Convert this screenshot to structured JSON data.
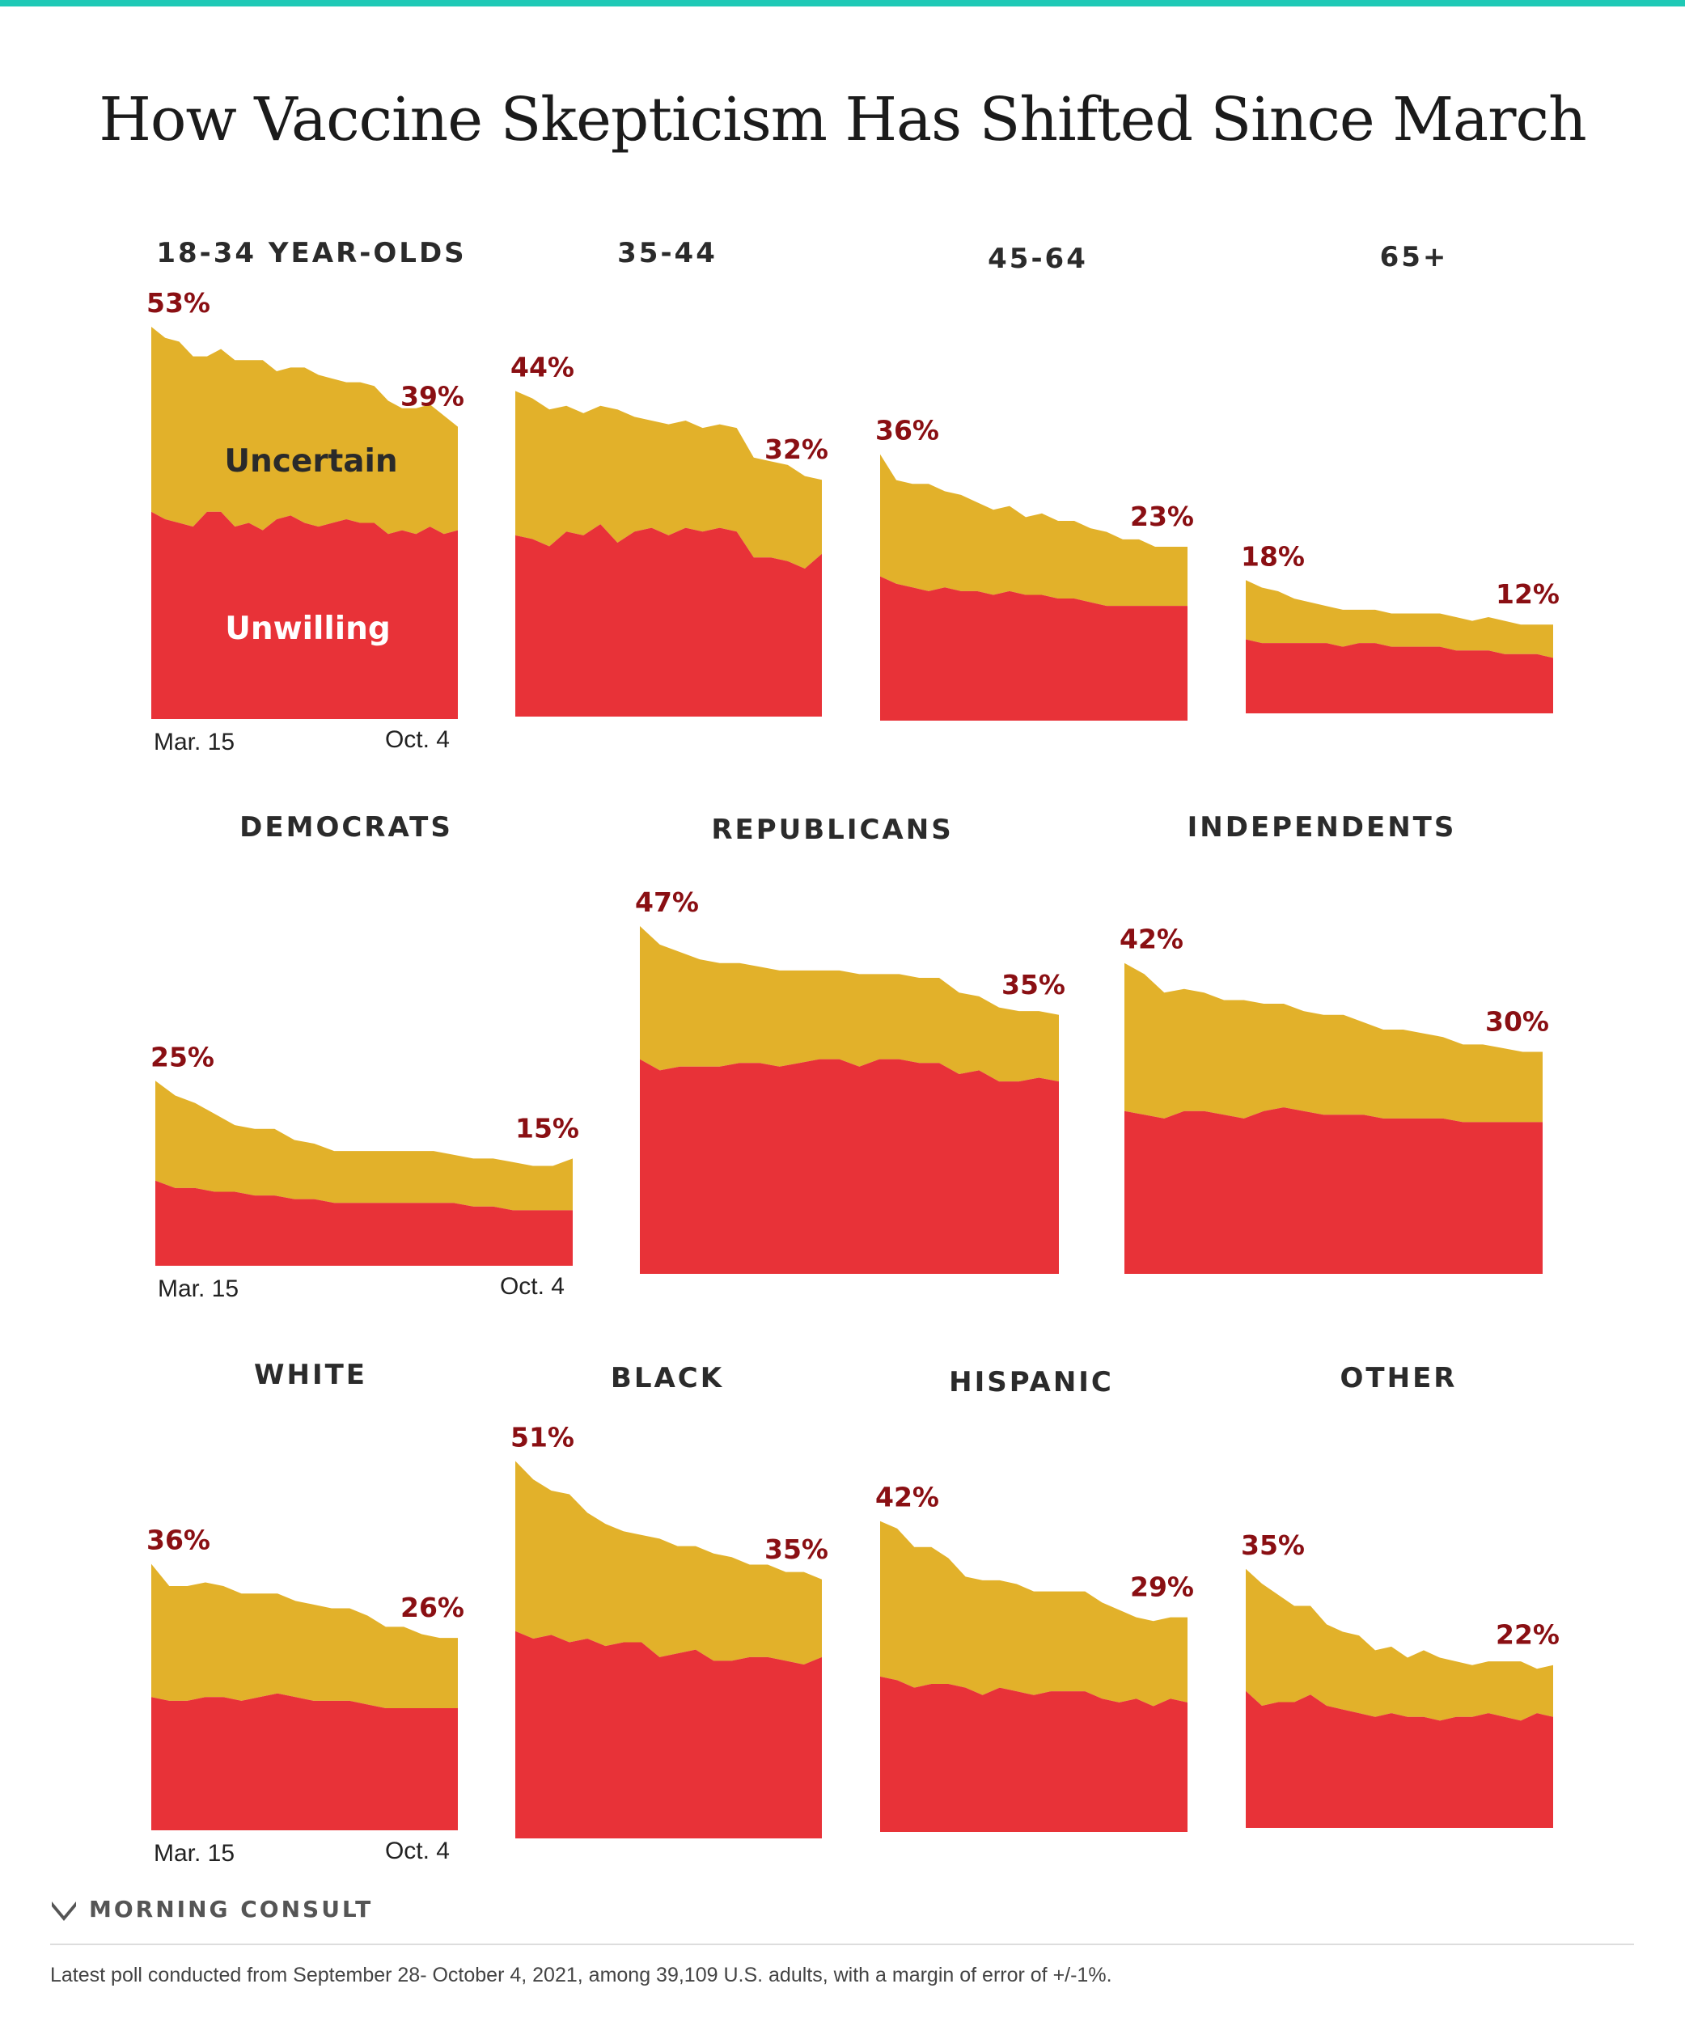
{
  "title": "How Vaccine Skepticism Has Shifted Since March",
  "colors": {
    "uncertain": "#e2b12a",
    "unwilling": "#e83238",
    "value_label": "#8a0f13",
    "accent_bar": "#1fc9b6",
    "title_text": "#1b1b1b"
  },
  "labels": {
    "uncertain": "Uncertain",
    "unwilling": "Unwilling"
  },
  "brand": "MORNING CONSULT",
  "footnote": "Latest poll conducted from September 28- October 4, 2021, among 39,109 U.S. adults, with a margin of error of +/-1%.",
  "chart_data": [
    {
      "type": "area",
      "title": "18-34 YEAR-OLDS",
      "x_start": "Mar. 15",
      "x_end": "Oct. 4",
      "start_label": "53%",
      "end_label": "39%",
      "ylim": [
        0,
        55
      ],
      "series": [
        {
          "name": "Unwilling",
          "values": [
            28,
            27,
            26.5,
            26,
            28,
            28,
            26,
            26.5,
            25.5,
            27,
            27.5,
            26.5,
            26,
            26.5,
            27,
            26.5,
            26.5,
            25,
            25.5,
            25,
            26,
            25,
            25.5
          ]
        },
        {
          "name": "Uncertain",
          "values": [
            25,
            24.5,
            24.5,
            23,
            21,
            22,
            22.5,
            22,
            23,
            20,
            20,
            21,
            20.5,
            19.5,
            18.5,
            19,
            18.5,
            18,
            16.5,
            17,
            16.5,
            16,
            14
          ]
        }
      ]
    },
    {
      "type": "area",
      "title": "35-44",
      "start_label": "44%",
      "end_label": "32%",
      "ylim": [
        0,
        55
      ],
      "series": [
        {
          "name": "Unwilling",
          "values": [
            24.5,
            24,
            23,
            25,
            24.5,
            26,
            23.5,
            25,
            25.5,
            24.5,
            25.5,
            25,
            25.5,
            25,
            21.5,
            21.5,
            21,
            20,
            22
          ]
        },
        {
          "name": "Uncertain",
          "values": [
            19.5,
            19,
            18.5,
            17,
            16.5,
            16,
            18,
            15.5,
            14.5,
            15,
            14.5,
            14,
            14,
            14,
            13.5,
            13,
            13,
            12.5,
            10
          ]
        }
      ]
    },
    {
      "type": "area",
      "title": "45-64",
      "start_label": "36%",
      "end_label": "23%",
      "ylim": [
        0,
        55
      ],
      "series": [
        {
          "name": "Unwilling",
          "values": [
            19.5,
            18.5,
            18,
            17.5,
            18,
            17.5,
            17.5,
            17,
            17.5,
            17,
            17,
            16.5,
            16.5,
            16,
            15.5,
            15.5,
            15.5,
            15.5,
            15.5,
            15.5
          ]
        },
        {
          "name": "Uncertain",
          "values": [
            16.5,
            14,
            14,
            14.5,
            13,
            13,
            12,
            11.5,
            11.5,
            10.5,
            11,
            10.5,
            10.5,
            10,
            10,
            9,
            9,
            8,
            8,
            8
          ]
        }
      ]
    },
    {
      "type": "area",
      "title": "65+",
      "start_label": "18%",
      "end_label": "12%",
      "ylim": [
        0,
        55
      ],
      "series": [
        {
          "name": "Unwilling",
          "values": [
            10,
            9.5,
            9.5,
            9.5,
            9.5,
            9.5,
            9,
            9.5,
            9.5,
            9,
            9,
            9,
            9,
            8.5,
            8.5,
            8.5,
            8,
            8,
            8,
            7.5
          ]
        },
        {
          "name": "Uncertain",
          "values": [
            8,
            7.5,
            7,
            6,
            5.5,
            5,
            5,
            4.5,
            4.5,
            4.5,
            4.5,
            4.5,
            4.5,
            4.5,
            4,
            4.5,
            4.5,
            4,
            4,
            4.5
          ]
        }
      ]
    },
    {
      "type": "area",
      "title": "DEMOCRATS",
      "x_start": "Mar. 15",
      "x_end": "Oct. 4",
      "start_label": "25%",
      "end_label": "15%",
      "ylim": [
        0,
        55
      ],
      "series": [
        {
          "name": "Unwilling",
          "values": [
            11.5,
            10.5,
            10.5,
            10,
            10,
            9.5,
            9.5,
            9,
            9,
            8.5,
            8.5,
            8.5,
            8.5,
            8.5,
            8.5,
            8.5,
            8,
            8,
            7.5,
            7.5,
            7.5,
            7.5
          ]
        },
        {
          "name": "Uncertain",
          "values": [
            13.5,
            12.5,
            11.5,
            10.5,
            9,
            9,
            9,
            8,
            7.5,
            7,
            7,
            7,
            7,
            7,
            7,
            6.5,
            6.5,
            6.5,
            6.5,
            6,
            6,
            7
          ]
        }
      ]
    },
    {
      "type": "area",
      "title": "REPUBLICANS",
      "start_label": "47%",
      "end_label": "35%",
      "ylim": [
        0,
        55
      ],
      "series": [
        {
          "name": "Unwilling",
          "values": [
            29,
            27.5,
            28,
            28,
            28,
            28.5,
            28.5,
            28,
            28.5,
            29,
            29,
            28,
            29,
            29,
            28.5,
            28.5,
            27,
            27.5,
            26,
            26,
            26.5,
            26
          ]
        },
        {
          "name": "Uncertain",
          "values": [
            18,
            17,
            15.5,
            14.5,
            14,
            13.5,
            13,
            13,
            12.5,
            12,
            12,
            12.5,
            11.5,
            11.5,
            11.5,
            11.5,
            11,
            10,
            10,
            9.5,
            9,
            9
          ]
        }
      ]
    },
    {
      "type": "area",
      "title": "INDEPENDENTS",
      "start_label": "42%",
      "end_label": "30%",
      "ylim": [
        0,
        55
      ],
      "series": [
        {
          "name": "Unwilling",
          "values": [
            22,
            21.5,
            21,
            22,
            22,
            21.5,
            21,
            22,
            22.5,
            22,
            21.5,
            21.5,
            21.5,
            21,
            21,
            21,
            21,
            20.5,
            20.5,
            20.5,
            20.5,
            20.5
          ]
        },
        {
          "name": "Uncertain",
          "values": [
            20,
            19,
            17,
            16.5,
            16,
            15.5,
            16,
            14.5,
            14,
            13.5,
            13.5,
            13.5,
            12.5,
            12,
            12,
            11.5,
            11,
            10.5,
            10.5,
            10,
            9.5,
            9.5
          ]
        }
      ]
    },
    {
      "type": "area",
      "title": "WHITE",
      "x_start": "Mar. 15",
      "x_end": "Oct. 4",
      "start_label": "36%",
      "end_label": "26%",
      "ylim": [
        0,
        55
      ],
      "series": [
        {
          "name": "Unwilling",
          "values": [
            18,
            17.5,
            17.5,
            18,
            18,
            17.5,
            18,
            18.5,
            18,
            17.5,
            17.5,
            17.5,
            17,
            16.5,
            16.5,
            16.5,
            16.5,
            16.5
          ]
        },
        {
          "name": "Uncertain",
          "values": [
            18,
            15.5,
            15.5,
            15.5,
            15,
            14.5,
            14,
            13.5,
            13,
            13,
            12.5,
            12.5,
            12,
            11,
            11,
            10,
            9.5,
            9.5
          ]
        }
      ]
    },
    {
      "type": "area",
      "title": "BLACK",
      "start_label": "51%",
      "end_label": "35%",
      "ylim": [
        0,
        55
      ],
      "series": [
        {
          "name": "Unwilling",
          "values": [
            28,
            27,
            27.5,
            26.5,
            27,
            26,
            26.5,
            26.5,
            24.5,
            25,
            25.5,
            24,
            24,
            24.5,
            24.5,
            24,
            23.5,
            24.5
          ]
        },
        {
          "name": "Uncertain",
          "values": [
            23,
            21.5,
            19.5,
            20,
            17,
            16.5,
            15,
            14.5,
            16,
            14.5,
            14,
            14.5,
            14,
            12.5,
            12.5,
            12,
            12.5,
            10.5
          ]
        }
      ]
    },
    {
      "type": "area",
      "title": "HISPANIC",
      "start_label": "42%",
      "end_label": "29%",
      "ylim": [
        0,
        55
      ],
      "series": [
        {
          "name": "Unwilling",
          "values": [
            21,
            20.5,
            19.5,
            20,
            20,
            19.5,
            18.5,
            19.5,
            19,
            18.5,
            19,
            19,
            19,
            18,
            17.5,
            18,
            17,
            18,
            17.5
          ]
        },
        {
          "name": "Uncertain",
          "values": [
            21,
            20.5,
            19,
            18.5,
            17,
            15,
            15.5,
            14.5,
            14.5,
            14,
            13.5,
            13.5,
            13.5,
            13,
            12.5,
            11,
            11.5,
            11,
            11.5
          ]
        }
      ]
    },
    {
      "type": "area",
      "title": "OTHER",
      "start_label": "35%",
      "end_label": "22%",
      "ylim": [
        0,
        55
      ],
      "series": [
        {
          "name": "Unwilling",
          "values": [
            18.5,
            16.5,
            17,
            17,
            18,
            16.5,
            16,
            15.5,
            15,
            15.5,
            15,
            15,
            14.5,
            15,
            15,
            15.5,
            15,
            14.5,
            15.5,
            15
          ]
        },
        {
          "name": "Uncertain",
          "values": [
            16.5,
            16.5,
            14.5,
            13,
            12,
            11,
            10.5,
            10.5,
            9,
            9,
            8,
            9,
            8.5,
            7.5,
            7,
            7,
            7.5,
            8,
            6,
            7
          ]
        }
      ]
    }
  ]
}
